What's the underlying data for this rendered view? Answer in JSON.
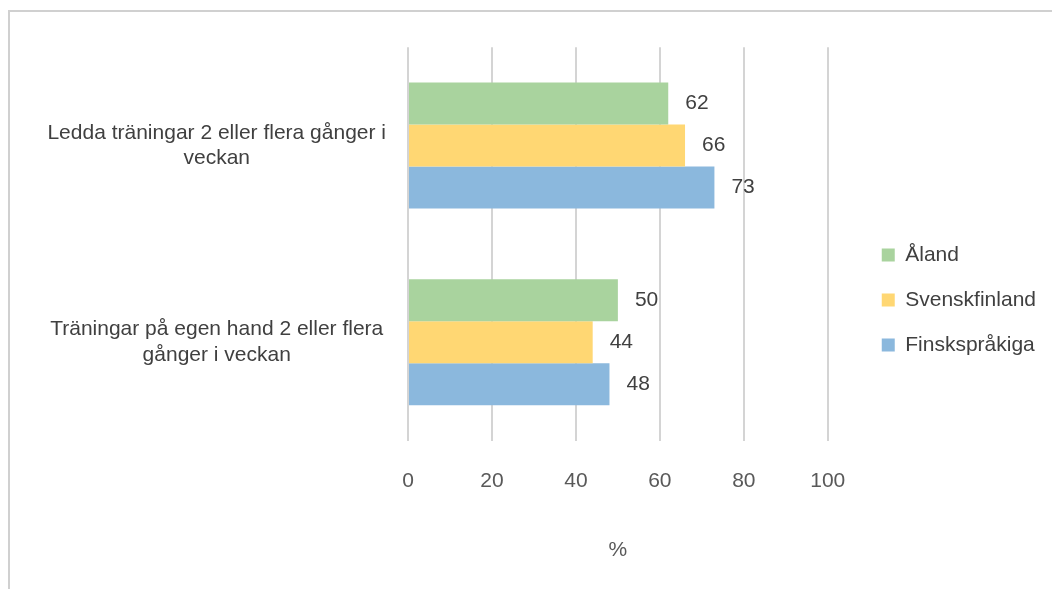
{
  "chart_data": {
    "type": "bar",
    "orientation": "horizontal",
    "categories": [
      "Ledda träningar 2 eller flera gånger i veckan",
      "Träningar på egen hand 2 eller flera gånger i veckan"
    ],
    "series": [
      {
        "name": "Åland",
        "color": "#a9d39e",
        "values": [
          62,
          50
        ]
      },
      {
        "name": "Svenskfinland",
        "color": "#ffd773",
        "values": [
          66,
          44
        ]
      },
      {
        "name": "Finskspråkiga",
        "color": "#8bb8dd",
        "values": [
          73,
          48
        ]
      }
    ],
    "xlabel": "%",
    "xlim": [
      0,
      100
    ],
    "xticks": [
      0,
      20,
      40,
      60,
      80,
      100
    ],
    "grid": "x",
    "legend": "right",
    "data_labels": true
  }
}
